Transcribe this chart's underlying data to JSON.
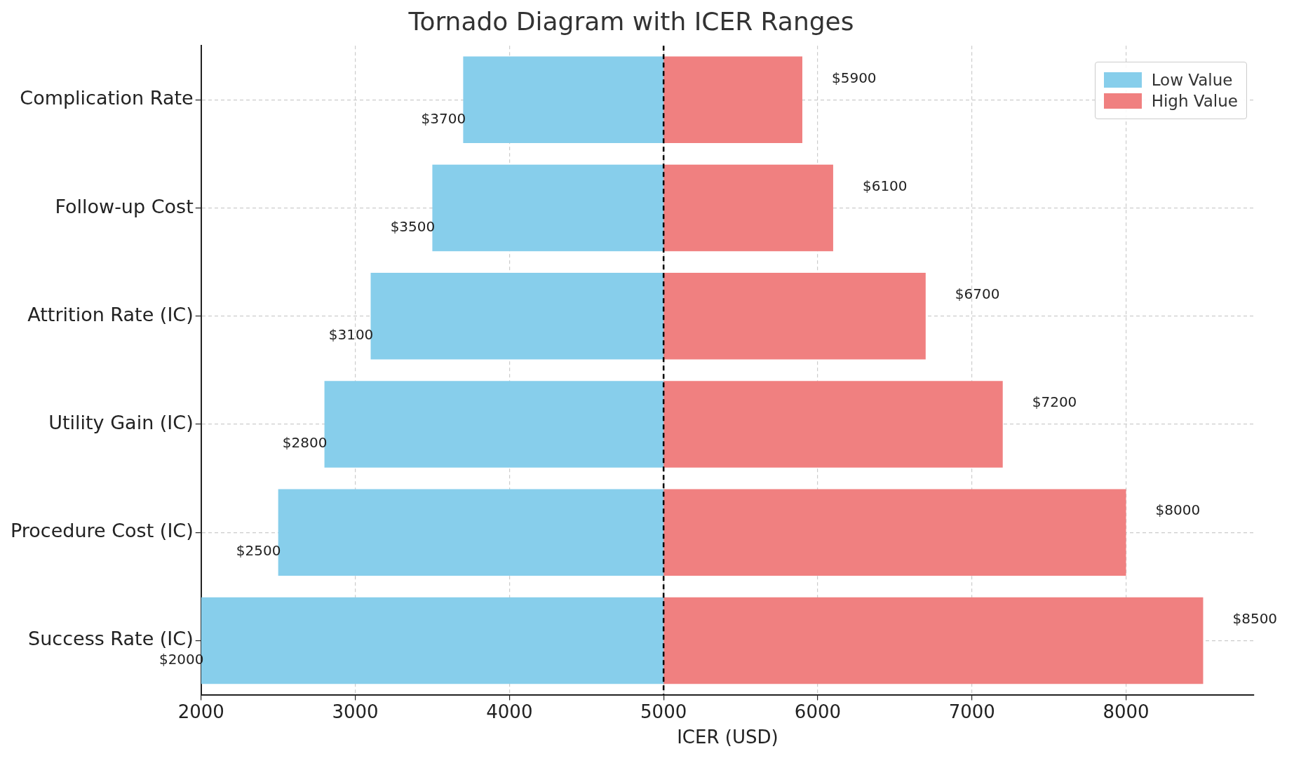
{
  "chart_data": {
    "type": "bar",
    "orientation": "horizontal",
    "title": "Tornado Diagram with ICER Ranges",
    "xlabel": "ICER (USD)",
    "categories": [
      "Complication Rate",
      "Follow-up Cost",
      "Attrition Rate (IC)",
      "Utility Gain (IC)",
      "Procedure Cost (IC)",
      "Success Rate (IC)"
    ],
    "series": [
      {
        "name": "Low Value",
        "color": "#87ceeb",
        "base": [
          5000,
          5000,
          5000,
          5000,
          5000,
          5000
        ],
        "values": [
          -1300,
          -1500,
          -1900,
          -2200,
          -2500,
          -3000
        ],
        "value_labels": [
          "$3700",
          "$3500",
          "$3100",
          "$2800",
          "$2500",
          "$2000"
        ]
      },
      {
        "name": "High Value",
        "color": "#f08080",
        "base": [
          5000,
          5000,
          5000,
          5000,
          5000,
          5000
        ],
        "values": [
          900,
          1100,
          1700,
          2200,
          3000,
          3500
        ],
        "value_labels": [
          "$5900",
          "$6100",
          "$6700",
          "$7200",
          "$8000",
          "$8500"
        ]
      }
    ],
    "xlim": [
      2000,
      8830
    ],
    "xticks": [
      2000,
      3000,
      4000,
      5000,
      6000,
      7000,
      8000
    ],
    "ref_lines": [
      {
        "axis": "x",
        "value": 5000,
        "color": "#000000",
        "line_style": "dashed"
      }
    ],
    "grid": true,
    "legend": "top right"
  }
}
